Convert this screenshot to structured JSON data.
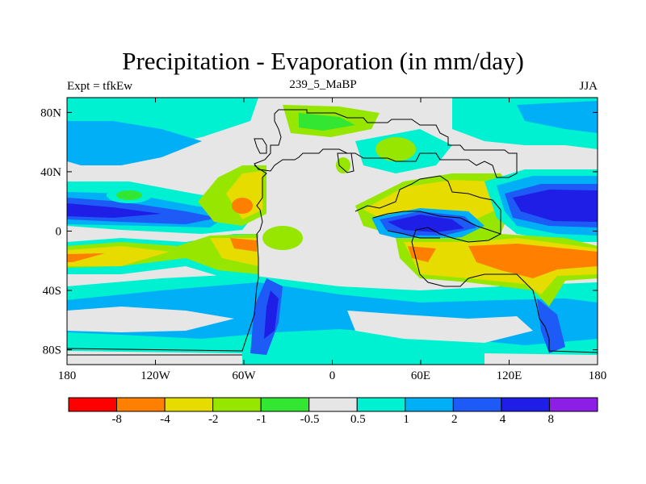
{
  "title": "Precipitation - Evaporation (in mm/day)",
  "left_string": "Expt = tfkEw",
  "center_string": "239_5_MaBP",
  "right_string": "JJA",
  "map": {
    "lon_ticks": [
      "180",
      "120W",
      "60W",
      "0",
      "60E",
      "120E",
      "180"
    ],
    "lat_ticks": [
      "80N",
      "40N",
      "0",
      "40S",
      "80S"
    ]
  },
  "colorbar": {
    "colors": [
      "#ff0000",
      "#ff7f00",
      "#e6dc00",
      "#96e600",
      "#32e632",
      "#e6e6e6",
      "#00f0d2",
      "#00aff5",
      "#1e5af5",
      "#1e1ee6",
      "#8c1ee6"
    ],
    "labels": [
      "-8",
      "-4",
      "-2",
      "-1",
      "-0.5",
      "0.5",
      "1",
      "2",
      "4",
      "8"
    ]
  }
}
